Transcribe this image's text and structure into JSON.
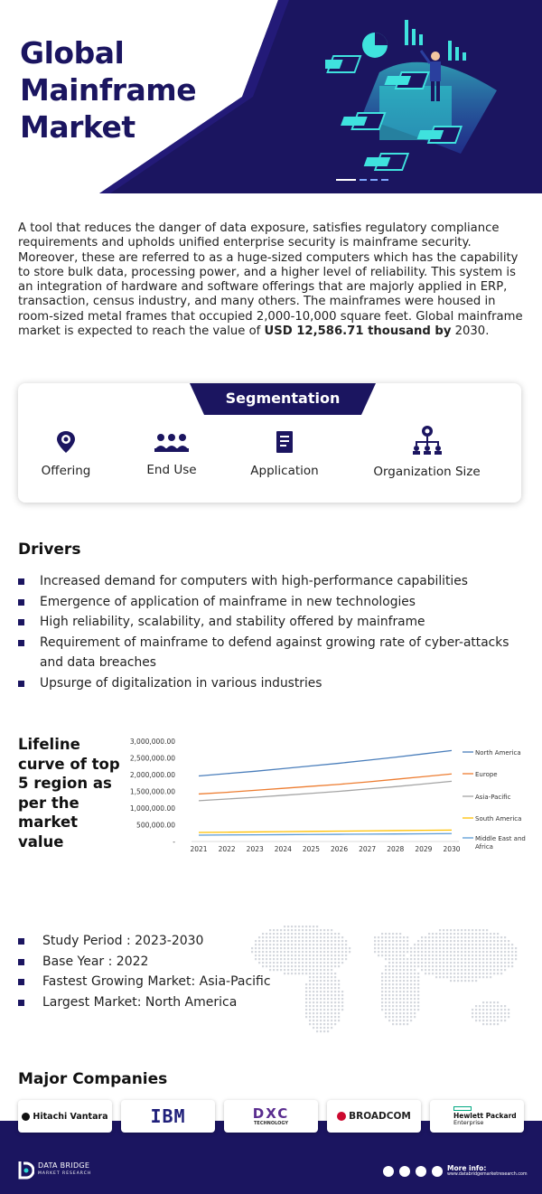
{
  "header": {
    "title_lines": [
      "Global",
      "Mainframe",
      "Market"
    ]
  },
  "intro": {
    "text": "A tool that reduces the danger of data exposure, satisfies regulatory compliance requirements and upholds unified enterprise security is mainframe security. Moreover, these are referred to as a huge-sized computers which has the capability to store bulk data, processing power, and a higher level of reliability. This system is an integration of hardware and software offerings that are majorly applied in ERP, transaction, census industry, and many others. The mainframes were housed in room-sized metal frames that occupied 2,000-10,000 square feet. Global mainframe market is expected to reach the value of ",
    "highlight": "USD 12,586.71 thousand by",
    "tail": " 2030."
  },
  "segmentation": {
    "title": "Segmentation",
    "items": [
      {
        "label": "Offering",
        "icon": "hand-gear-icon"
      },
      {
        "label": "End Use",
        "icon": "users-group-icon"
      },
      {
        "label": "Application",
        "icon": "document-icon"
      },
      {
        "label": "Organization Size",
        "icon": "org-chart-icon"
      }
    ]
  },
  "drivers": {
    "title": "Drivers",
    "items": [
      "Increased demand for computers with high-performance capabilities",
      "Emergence of application of mainframe in new technologies",
      "High reliability, scalability, and stability offered by mainframe",
      "Requirement of mainframe to defend against growing rate of cyber-attacks and data breaches",
      "Upsurge of digitalization in various industries"
    ]
  },
  "lifeline": {
    "title_lines": [
      "Lifeline",
      "curve of top",
      "5 region as",
      "per the",
      "market",
      "value"
    ]
  },
  "chart_data": {
    "type": "line",
    "x": [
      "2021",
      "2022",
      "2023",
      "2024",
      "2025",
      "2026",
      "2027",
      "2028",
      "2029",
      "2030"
    ],
    "y_ticks": [
      "3,000,000.00",
      "2,500,000.00",
      "2,000,000.00",
      "1,500,000.00",
      "1,000,000.00",
      "500,000.00",
      "-"
    ],
    "ylim": [
      0,
      3000000
    ],
    "series": [
      {
        "name": "North America",
        "color": "#4a7ebb",
        "values": [
          1960000,
          2030000,
          2100000,
          2180000,
          2260000,
          2340000,
          2430000,
          2520000,
          2620000,
          2720000
        ]
      },
      {
        "name": "Europe",
        "color": "#ed7d31",
        "values": [
          1420000,
          1470000,
          1530000,
          1590000,
          1650000,
          1710000,
          1780000,
          1860000,
          1940000,
          2020000
        ]
      },
      {
        "name": "Asia-Pacific",
        "color": "#a5a5a5",
        "values": [
          1220000,
          1270000,
          1320000,
          1380000,
          1440000,
          1500000,
          1570000,
          1640000,
          1720000,
          1800000
        ]
      },
      {
        "name": "South America",
        "color": "#ffc000",
        "values": [
          270000,
          278000,
          286000,
          294000,
          302000,
          310000,
          318000,
          326000,
          334000,
          342000
        ]
      },
      {
        "name": "Middle East and Africa",
        "color": "#5b9bd5",
        "values": [
          190000,
          195000,
          200000,
          205000,
          210000,
          215000,
          220000,
          225000,
          230000,
          236000
        ]
      }
    ],
    "legend_position": "right"
  },
  "stats": {
    "items": [
      "Study Period : 2023-2030",
      "Base Year : 2022",
      "Fastest Growing Market: Asia-Pacific",
      "Largest Market: North America"
    ]
  },
  "companies": {
    "title": "Major Companies",
    "items": [
      {
        "name": "Hitachi Vantara"
      },
      {
        "name": "IBM"
      },
      {
        "name": "DXC",
        "sub": "TECHNOLOGY"
      },
      {
        "name": "BROADCOM"
      },
      {
        "name": "Hewlett Packard",
        "sub": "Enterprise"
      }
    ]
  },
  "footer": {
    "brand": "DATA BRIDGE",
    "brand_sub": "MARKET RESEARCH",
    "more_info": "More info:",
    "url": "www.databridgemarketresearch.com",
    "colors": {
      "navy": "#1b1560",
      "cyan": "#2fd8d4"
    }
  }
}
